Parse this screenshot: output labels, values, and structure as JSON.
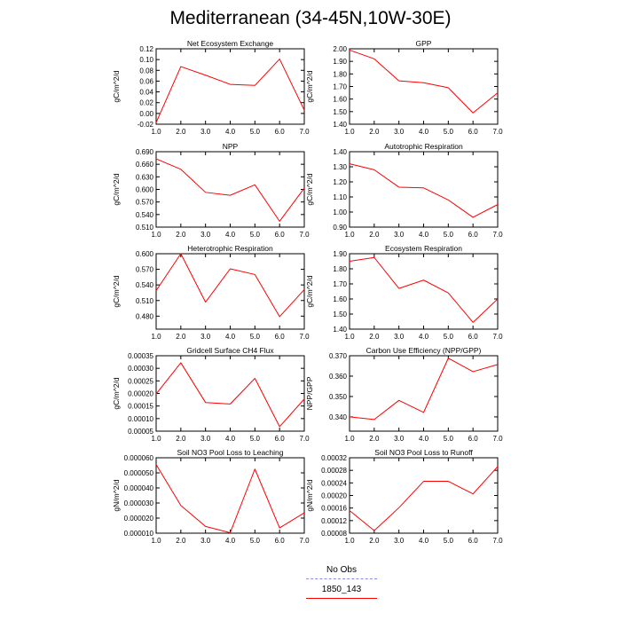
{
  "title": "Mediterranean (34-45N,10W-30E)",
  "legend": [
    {
      "label": "No Obs",
      "color": "#8a8af0",
      "dash": true
    },
    {
      "label": "1850_143",
      "color": "#ff0000",
      "dash": false
    }
  ],
  "chart_data": [
    {
      "type": "line",
      "title": "Net Ecosystem Exchange",
      "ylabel": "gC/m^2/d",
      "x": [
        1,
        2,
        3,
        4,
        5,
        6,
        7
      ],
      "xlim": [
        1,
        7
      ],
      "xticks": [
        "1.0",
        "2.0",
        "3.0",
        "4.0",
        "5.0",
        "6.0",
        "7.0"
      ],
      "ylim": [
        -0.02,
        0.12
      ],
      "yticks": [
        "-0.02",
        "0.00",
        "0.02",
        "0.04",
        "0.06",
        "0.08",
        "0.10",
        "0.12"
      ],
      "series": [
        {
          "color": "#ff0000",
          "values": [
            -0.017,
            0.087,
            0.071,
            0.054,
            0.052,
            0.101,
            0.006
          ]
        }
      ]
    },
    {
      "type": "line",
      "title": "GPP",
      "ylabel": "gC/m^2/d",
      "x": [
        1,
        2,
        3,
        4,
        5,
        6,
        7
      ],
      "xlim": [
        1,
        7
      ],
      "xticks": [
        "1.0",
        "2.0",
        "3.0",
        "4.0",
        "5.0",
        "6.0",
        "7.0"
      ],
      "ylim": [
        1.4,
        2.0
      ],
      "yticks": [
        "1.40",
        "1.50",
        "1.60",
        "1.70",
        "1.80",
        "1.90",
        "2.00"
      ],
      "series": [
        {
          "color": "#ff0000",
          "values": [
            1.99,
            1.92,
            1.745,
            1.73,
            1.69,
            1.49,
            1.65
          ]
        }
      ]
    },
    {
      "type": "line",
      "title": "NPP",
      "ylabel": "gC/m^2/d",
      "x": [
        1,
        2,
        3,
        4,
        5,
        6,
        7
      ],
      "xlim": [
        1,
        7
      ],
      "xticks": [
        "1.0",
        "2.0",
        "3.0",
        "4.0",
        "5.0",
        "6.0",
        "7.0"
      ],
      "ylim": [
        0.51,
        0.69
      ],
      "yticks": [
        "0.510",
        "0.540",
        "0.570",
        "0.600",
        "0.630",
        "0.660",
        "0.690"
      ],
      "series": [
        {
          "color": "#ff0000",
          "values": [
            0.673,
            0.648,
            0.593,
            0.586,
            0.611,
            0.524,
            0.603
          ]
        }
      ]
    },
    {
      "type": "line",
      "title": "Autotrophic Respiration",
      "ylabel": "gC/m^2/d",
      "x": [
        1,
        2,
        3,
        4,
        5,
        6,
        7
      ],
      "xlim": [
        1,
        7
      ],
      "xticks": [
        "1.0",
        "2.0",
        "3.0",
        "4.0",
        "5.0",
        "6.0",
        "7.0"
      ],
      "ylim": [
        0.9,
        1.4
      ],
      "yticks": [
        "0.90",
        "1.00",
        "1.10",
        "1.20",
        "1.30",
        "1.40"
      ],
      "series": [
        {
          "color": "#ff0000",
          "values": [
            1.32,
            1.28,
            1.165,
            1.16,
            1.08,
            0.965,
            1.05
          ]
        }
      ]
    },
    {
      "type": "line",
      "title": "Heterotrophic Respiration",
      "ylabel": "gC/m^2/d",
      "x": [
        1,
        2,
        3,
        4,
        5,
        6,
        7
      ],
      "xlim": [
        1,
        7
      ],
      "xticks": [
        "1.0",
        "2.0",
        "3.0",
        "4.0",
        "5.0",
        "6.0",
        "7.0"
      ],
      "ylim": [
        0.455,
        0.6
      ],
      "yticks": [
        "0.480",
        "0.510",
        "0.540",
        "0.570",
        "0.600"
      ],
      "series": [
        {
          "color": "#ff0000",
          "values": [
            0.529,
            0.6,
            0.507,
            0.571,
            0.56,
            0.479,
            0.531
          ]
        }
      ]
    },
    {
      "type": "line",
      "title": "Ecosystem Respiration",
      "ylabel": "gC/m^2/d",
      "x": [
        1,
        2,
        3,
        4,
        5,
        6,
        7
      ],
      "xlim": [
        1,
        7
      ],
      "xticks": [
        "1.0",
        "2.0",
        "3.0",
        "4.0",
        "5.0",
        "6.0",
        "7.0"
      ],
      "ylim": [
        1.4,
        1.9
      ],
      "yticks": [
        "1.40",
        "1.50",
        "1.60",
        "1.70",
        "1.80",
        "1.90"
      ],
      "series": [
        {
          "color": "#ff0000",
          "values": [
            1.85,
            1.875,
            1.67,
            1.725,
            1.64,
            1.445,
            1.6
          ]
        }
      ]
    },
    {
      "type": "line",
      "title": "Gridcell Surface CH4 Flux",
      "ylabel": "gC/m^2/d",
      "x": [
        1,
        2,
        3,
        4,
        5,
        6,
        7
      ],
      "xlim": [
        1,
        7
      ],
      "xticks": [
        "1.0",
        "2.0",
        "3.0",
        "4.0",
        "5.0",
        "6.0",
        "7.0"
      ],
      "ylim": [
        5e-05,
        0.00035
      ],
      "yticks": [
        "0.00005",
        "0.00010",
        "0.00015",
        "0.00020",
        "0.00025",
        "0.00030",
        "0.00035"
      ],
      "series": [
        {
          "color": "#ff0000",
          "values": [
            0.000198,
            0.000322,
            0.000164,
            0.000158,
            0.00026,
            6.8e-05,
            0.000178
          ]
        }
      ]
    },
    {
      "type": "line",
      "title": "Carbon Use Efficiency (NPP/GPP)",
      "ylabel": "NPP/GPP",
      "x": [
        1,
        2,
        3,
        4,
        5,
        6,
        7
      ],
      "xlim": [
        1,
        7
      ],
      "xticks": [
        "1.0",
        "2.0",
        "3.0",
        "4.0",
        "5.0",
        "6.0",
        "7.0"
      ],
      "ylim": [
        0.333,
        0.37
      ],
      "yticks": [
        "0.340",
        "0.350",
        "0.360",
        "0.370"
      ],
      "series": [
        {
          "color": "#ff0000",
          "values": [
            0.34,
            0.3387,
            0.3481,
            0.3422,
            0.3688,
            0.3622,
            0.3657
          ]
        }
      ]
    },
    {
      "type": "line",
      "title": "Soil NO3 Pool Loss to Leaching",
      "ylabel": "gN/m^2/d",
      "x": [
        1,
        2,
        3,
        4,
        5,
        6,
        7
      ],
      "xlim": [
        1,
        7
      ],
      "xticks": [
        "1.0",
        "2.0",
        "3.0",
        "4.0",
        "5.0",
        "6.0",
        "7.0"
      ],
      "ylim": [
        1e-05,
        6e-05
      ],
      "yticks": [
        "0.000010",
        "0.000020",
        "0.000030",
        "0.000040",
        "0.000050",
        "0.000060"
      ],
      "series": [
        {
          "color": "#ff0000",
          "values": [
            5.55e-05,
            2.84e-05,
            1.45e-05,
            1.03e-05,
            5.25e-05,
            1.35e-05,
            2.35e-05
          ]
        }
      ]
    },
    {
      "type": "line",
      "title": "Soil NO3 Pool Loss to Runoff",
      "ylabel": "gN/m^2/d",
      "x": [
        1,
        2,
        3,
        4,
        5,
        6,
        7
      ],
      "xlim": [
        1,
        7
      ],
      "xticks": [
        "1.0",
        "2.0",
        "3.0",
        "4.0",
        "5.0",
        "6.0",
        "7.0"
      ],
      "ylim": [
        8e-05,
        0.00032
      ],
      "yticks": [
        "0.00008",
        "0.00012",
        "0.00016",
        "0.00020",
        "0.00024",
        "0.00028",
        "0.00032"
      ],
      "series": [
        {
          "color": "#ff0000",
          "values": [
            0.000152,
            8.8e-05,
            0.000161,
            0.000245,
            0.000245,
            0.000205,
            0.000292
          ]
        }
      ]
    }
  ]
}
